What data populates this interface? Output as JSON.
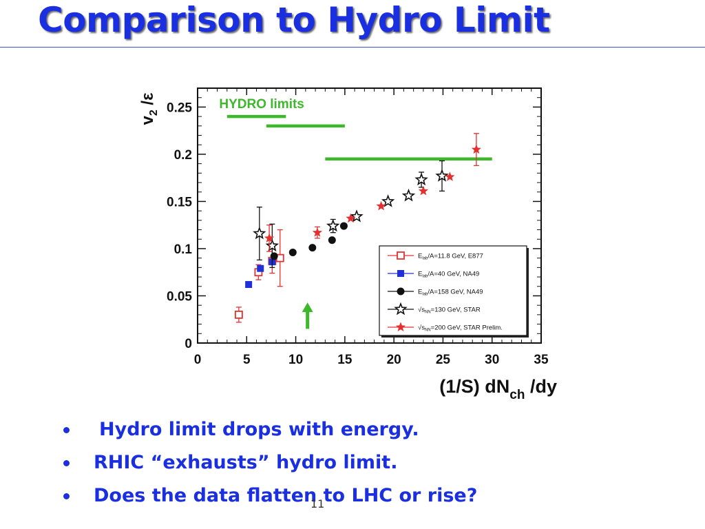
{
  "slide": {
    "title": "Comparison to Hydro Limit",
    "bullets": [
      "Hydro limit drops with energy.",
      "RHIC “exhausts” hydro limit.",
      "Does the data flatten to LHC or rise?"
    ],
    "page_number": "11",
    "title_color": "#1a2fe0"
  },
  "chart_data": {
    "type": "scatter",
    "ylabel": "v2 /ε",
    "xlabel": "(1/S) dNch /dy",
    "xlim": [
      0,
      35
    ],
    "ylim": [
      0,
      0.27
    ],
    "x_ticks": [
      "0",
      "5",
      "10",
      "15",
      "20",
      "25",
      "30",
      "35"
    ],
    "y_ticks": [
      "0",
      "0.05",
      "0.1",
      "0.15",
      "0.2",
      "0.25"
    ],
    "grid": false,
    "legend_position": "bottom-right",
    "annotation": "HYDRO  limits",
    "hydro_limits": [
      {
        "x": [
          3,
          9
        ],
        "y": 0.24
      },
      {
        "x": [
          7,
          15
        ],
        "y": 0.23
      },
      {
        "x": [
          13,
          30
        ],
        "y": 0.195
      }
    ],
    "arrow": {
      "x": 11.2,
      "y_from": 0.015,
      "y_to": 0.04,
      "color": "#3cb82a"
    },
    "series": [
      {
        "name": "Elab/A=11.8 GeV, E877",
        "color": "#e53030",
        "marker": "open-square",
        "points": [
          [
            4.2,
            0.03,
            0.008
          ],
          [
            6.2,
            0.075,
            0.008
          ],
          [
            7.6,
            0.087,
            0.013
          ],
          [
            8.4,
            0.09,
            0.03
          ]
        ]
      },
      {
        "name": "Elab/A=40 GeV, NA49",
        "color": "#2030d8",
        "marker": "filled-square",
        "points": [
          [
            5.2,
            0.062,
            0.0
          ],
          [
            6.4,
            0.079,
            0.0
          ],
          [
            7.6,
            0.086,
            0.0
          ]
        ]
      },
      {
        "name": "Elab/A=158 GeV, NA49",
        "color": "#111111",
        "marker": "filled-circle",
        "points": [
          [
            7.8,
            0.092,
            0.0
          ],
          [
            9.7,
            0.096,
            0.0
          ],
          [
            11.7,
            0.101,
            0.0
          ],
          [
            13.7,
            0.109,
            0.0
          ],
          [
            14.9,
            0.124,
            0.0
          ]
        ]
      },
      {
        "name": "√sNN=130 GeV, STAR",
        "color": "#111111",
        "marker": "open-star",
        "points": [
          [
            6.3,
            0.116,
            0.028
          ],
          [
            7.6,
            0.103,
            0.023
          ],
          [
            13.8,
            0.124,
            0.007
          ],
          [
            16.2,
            0.134,
            0.0
          ],
          [
            19.4,
            0.15,
            0.0
          ],
          [
            21.5,
            0.156,
            0.0
          ],
          [
            22.8,
            0.173,
            0.008
          ],
          [
            24.9,
            0.177,
            0.016
          ]
        ]
      },
      {
        "name": "√sNN=200 GeV, STAR Prelim.",
        "color": "#e53030",
        "marker": "filled-star",
        "points": [
          [
            7.3,
            0.111,
            0.014
          ],
          [
            12.2,
            0.117,
            0.006
          ],
          [
            15.6,
            0.132,
            0.0
          ],
          [
            18.7,
            0.145,
            0.0
          ],
          [
            23.0,
            0.161,
            0.0
          ],
          [
            25.7,
            0.176,
            0.0
          ],
          [
            28.4,
            0.205,
            0.017
          ]
        ]
      }
    ],
    "legend_labels": [
      {
        "prefix": "E",
        "sub": "lab",
        "rest": "/A=11.8 GeV, E877"
      },
      {
        "prefix": "E",
        "sub": "lab",
        "rest": "/A=40 GeV, NA49"
      },
      {
        "prefix": "E",
        "sub": "lab",
        "rest": "/A=158 GeV, NA49"
      },
      {
        "prefix": "√s",
        "sub": "NN",
        "rest": "=130 GeV, STAR"
      },
      {
        "prefix": "√s",
        "sub": "NN",
        "rest": "=200 GeV, STAR Prelim."
      }
    ],
    "colors": {
      "hydro": "#3cb82a",
      "frame": "#111111"
    }
  }
}
